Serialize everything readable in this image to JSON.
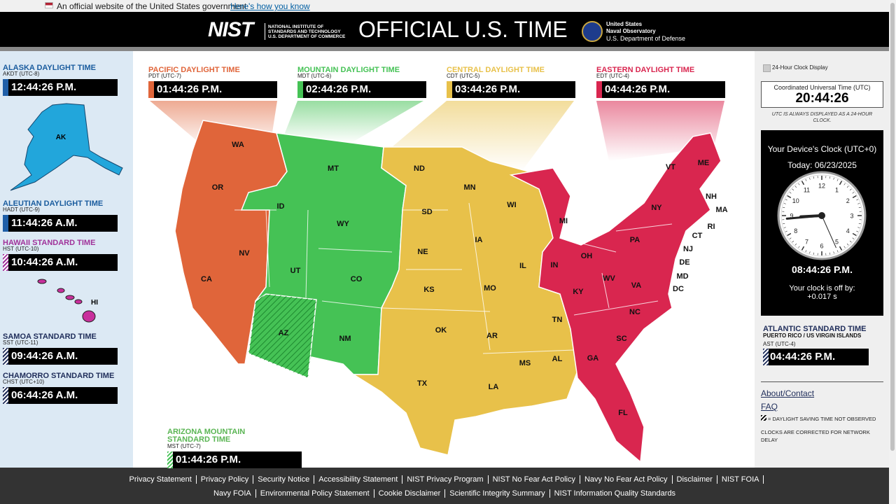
{
  "banner": {
    "text": "An official website of the United States government",
    "link": "Here's how you know"
  },
  "header": {
    "nist": "NIST",
    "nist_lines": [
      "NATIONAL INSTITUTE OF",
      "STANDARDS AND TECHNOLOGY",
      "U.S. DEPARTMENT OF COMMERCE"
    ],
    "title": "OFFICIAL U.S. TIME",
    "usno_lines": [
      "United States",
      "Naval Observatory",
      "U.S. Department of Defense"
    ]
  },
  "side_zones": [
    {
      "name": "ALASKA DAYLIGHT TIME",
      "abbr": "AKDT (UTC-8)",
      "time": "12:44:26 P.M.",
      "color": "#1f5fa8",
      "dst_observed": true
    },
    {
      "name": "ALEUTIAN DAYLIGHT TIME",
      "abbr": "HADT (UTC-9)",
      "time": "11:44:26 A.M.",
      "color": "#1f5fa8",
      "dst_observed": true
    },
    {
      "name": "HAWAII STANDARD TIME",
      "abbr": "HST (UTC-10)",
      "time": "10:44:26 A.M.",
      "color": "#a0329a",
      "dst_observed": false
    },
    {
      "name": "SAMOA STANDARD TIME",
      "abbr": "SST (UTC-11)",
      "time": "09:44:26 A.M.",
      "color": "#1f2d5a",
      "dst_observed": false
    },
    {
      "name": "CHAMORRO STANDARD TIME",
      "abbr": "CHST (UTC+10)",
      "time": "06:44:26 A.M.",
      "color": "#1f2d5a",
      "dst_observed": false
    }
  ],
  "map_labels": {
    "alaska": "AK",
    "hawaii": "HI"
  },
  "map_zones": [
    {
      "name": "PACIFIC DAYLIGHT TIME",
      "abbr": "PDT (UTC-7)",
      "time": "01:44:26 P.M.",
      "color": "#e0653a",
      "dst_observed": true
    },
    {
      "name": "MOUNTAIN DAYLIGHT TIME",
      "abbr": "MDT (UTC-6)",
      "time": "02:44:26 P.M.",
      "color": "#45c255",
      "dst_observed": true
    },
    {
      "name": "CENTRAL DAYLIGHT TIME",
      "abbr": "CDT (UTC-5)",
      "time": "03:44:26 P.M.",
      "color": "#e8c14a",
      "dst_observed": true
    },
    {
      "name": "EASTERN DAYLIGHT TIME",
      "abbr": "EDT (UTC-4)",
      "time": "04:44:26 P.M.",
      "color": "#d9264f",
      "dst_observed": true
    }
  ],
  "arizona": {
    "name": "ARIZONA MOUNTAIN STANDARD TIME",
    "abbr": "MST (UTC-7)",
    "time": "01:44:26 P.M.",
    "color": "#45c255",
    "dst_observed": false
  },
  "states": [
    "WA",
    "OR",
    "CA",
    "NV",
    "ID",
    "MT",
    "WY",
    "UT",
    "CO",
    "AZ",
    "NM",
    "ND",
    "SD",
    "NE",
    "KS",
    "OK",
    "TX",
    "MN",
    "IA",
    "MO",
    "AR",
    "LA",
    "WI",
    "IL",
    "MS",
    "AL",
    "TN",
    "MI",
    "IN",
    "OH",
    "KY",
    "WV",
    "VA",
    "PA",
    "NY",
    "NC",
    "SC",
    "GA",
    "FL",
    "VT",
    "NH",
    "ME",
    "MA",
    "RI",
    "CT",
    "NJ",
    "DE",
    "MD",
    "DC"
  ],
  "right": {
    "checkbox": "24-Hour Clock Display",
    "utc_title": "Coordinated Universal Time (UTC)",
    "utc_time": "20:44:26",
    "utc_note": "UTC IS ALWAYS DISPLAYED AS A 24-HOUR CLOCK.",
    "device_title": "Your Device's Clock (UTC+0)",
    "today": "Today: 06/23/2025",
    "clock_numbers": [
      "12",
      "1",
      "2",
      "3",
      "4",
      "5",
      "6",
      "7",
      "8",
      "9",
      "10",
      "11"
    ],
    "device_time": "08:44:26 P.M.",
    "offset_label": "Your clock is off by:",
    "offset": "+0.017 s",
    "atlantic": {
      "name": "ATLANTIC STANDARD TIME",
      "sub": "PUERTO RICO / US VIRGIN ISLANDS",
      "abbr": "AST (UTC-4)",
      "time": "04:44:26 P.M.",
      "color": "#1f2d5a",
      "dst_observed": false
    },
    "links": [
      "About/Contact",
      "FAQ"
    ],
    "legend": "= DAYLIGHT SAVING TIME NOT OBSERVED",
    "note": "CLOCKS ARE CORRECTED FOR NETWORK DELAY"
  },
  "footer": [
    "Privacy Statement",
    "Privacy Policy",
    "Security Notice",
    "Accessibility Statement",
    "NIST Privacy Program",
    "NIST No Fear Act Policy",
    "Navy No Fear Act Policy",
    "Disclaimer",
    "NIST FOIA",
    "Navy FOIA",
    "Environmental Policy Statement",
    "Cookie Disclaimer",
    "Scientific Integrity Summary",
    "NIST Information Quality Standards"
  ]
}
